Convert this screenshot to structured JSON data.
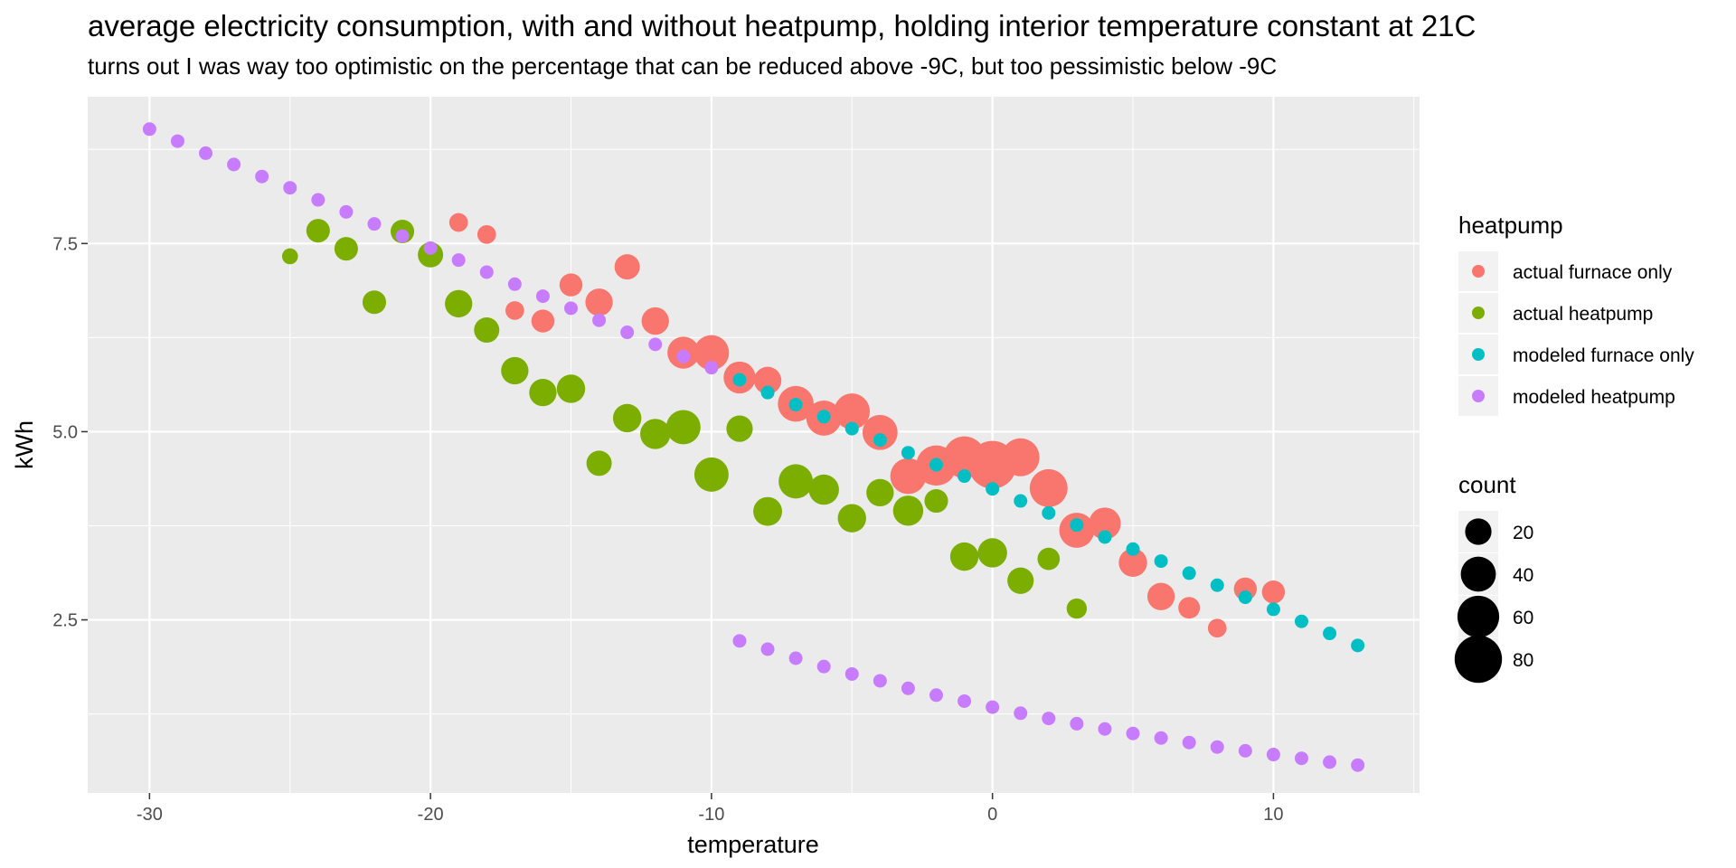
{
  "chart_data": {
    "type": "scatter",
    "title": "average electricity consumption, with and without heatpump, holding interior temperature constant at 21C",
    "subtitle": "turns out I was way too optimistic on the percentage that can be reduced above -9C, but too pessimistic below -9C",
    "xlabel": "temperature",
    "ylabel": "kWh",
    "xlim": [
      -32.2,
      15.2
    ],
    "ylim": [
      0.2,
      9.45
    ],
    "xticks": [
      -30,
      -20,
      -10,
      0,
      10
    ],
    "xtick_labels": [
      "-30",
      "-20",
      "-10",
      "0",
      "10"
    ],
    "yticks": [
      2.5,
      5.0,
      7.5
    ],
    "ytick_labels": [
      "2.5",
      "5.0",
      "7.5"
    ],
    "grid": true,
    "legend_position": "right",
    "size_legend": {
      "title": "count",
      "entries": [
        {
          "label": "20",
          "value": 20
        },
        {
          "label": "40",
          "value": 40
        },
        {
          "label": "60",
          "value": 60
        },
        {
          "label": "80",
          "value": 80
        }
      ]
    },
    "color_legend_title": "heatpump",
    "series": [
      {
        "name": "actual furnace only",
        "color": "#F8766D",
        "points": [
          {
            "x": -19,
            "y": 7.78,
            "count": 8
          },
          {
            "x": -18,
            "y": 7.62,
            "count": 8
          },
          {
            "x": -17,
            "y": 6.61,
            "count": 8
          },
          {
            "x": -16,
            "y": 6.47,
            "count": 14
          },
          {
            "x": -15,
            "y": 6.95,
            "count": 14
          },
          {
            "x": -14,
            "y": 6.72,
            "count": 22
          },
          {
            "x": -13,
            "y": 7.19,
            "count": 18
          },
          {
            "x": -12,
            "y": 6.47,
            "count": 22
          },
          {
            "x": -11,
            "y": 6.05,
            "count": 32
          },
          {
            "x": -10,
            "y": 6.05,
            "count": 40
          },
          {
            "x": -9,
            "y": 5.72,
            "count": 32
          },
          {
            "x": -8,
            "y": 5.68,
            "count": 22
          },
          {
            "x": -7,
            "y": 5.37,
            "count": 42
          },
          {
            "x": -6,
            "y": 5.18,
            "count": 40
          },
          {
            "x": -5,
            "y": 5.27,
            "count": 42
          },
          {
            "x": -4,
            "y": 4.99,
            "count": 40
          },
          {
            "x": -3,
            "y": 4.41,
            "count": 42
          },
          {
            "x": -2,
            "y": 4.55,
            "count": 55
          },
          {
            "x": -1,
            "y": 4.66,
            "count": 60
          },
          {
            "x": 0,
            "y": 4.56,
            "count": 82
          },
          {
            "x": 1,
            "y": 4.66,
            "count": 48
          },
          {
            "x": 2,
            "y": 4.25,
            "count": 48
          },
          {
            "x": 3,
            "y": 3.69,
            "count": 40
          },
          {
            "x": 4,
            "y": 3.78,
            "count": 32
          },
          {
            "x": 5,
            "y": 3.26,
            "count": 24
          },
          {
            "x": 6,
            "y": 2.81,
            "count": 22
          },
          {
            "x": 7,
            "y": 2.66,
            "count": 12
          },
          {
            "x": 8,
            "y": 2.39,
            "count": 8
          },
          {
            "x": 9,
            "y": 2.91,
            "count": 14
          },
          {
            "x": 10,
            "y": 2.87,
            "count": 14
          }
        ]
      },
      {
        "name": "actual heatpump",
        "color": "#7CAE00",
        "points": [
          {
            "x": -25,
            "y": 7.33,
            "count": 5
          },
          {
            "x": -24,
            "y": 7.67,
            "count": 15
          },
          {
            "x": -23,
            "y": 7.43,
            "count": 15
          },
          {
            "x": -22,
            "y": 6.72,
            "count": 15
          },
          {
            "x": -21,
            "y": 7.66,
            "count": 15
          },
          {
            "x": -20,
            "y": 7.35,
            "count": 18
          },
          {
            "x": -19,
            "y": 6.7,
            "count": 22
          },
          {
            "x": -18,
            "y": 6.35,
            "count": 18
          },
          {
            "x": -17,
            "y": 5.81,
            "count": 22
          },
          {
            "x": -16,
            "y": 5.52,
            "count": 22
          },
          {
            "x": -15,
            "y": 5.57,
            "count": 24
          },
          {
            "x": -14,
            "y": 4.58,
            "count": 18
          },
          {
            "x": -13,
            "y": 5.18,
            "count": 24
          },
          {
            "x": -12,
            "y": 4.97,
            "count": 28
          },
          {
            "x": -11,
            "y": 5.06,
            "count": 38
          },
          {
            "x": -10,
            "y": 4.43,
            "count": 38
          },
          {
            "x": -9,
            "y": 5.04,
            "count": 20
          },
          {
            "x": -8,
            "y": 3.94,
            "count": 25
          },
          {
            "x": -7,
            "y": 4.34,
            "count": 38
          },
          {
            "x": -6,
            "y": 4.23,
            "count": 28
          },
          {
            "x": -5,
            "y": 3.85,
            "count": 24
          },
          {
            "x": -4,
            "y": 4.19,
            "count": 22
          },
          {
            "x": -3,
            "y": 3.95,
            "count": 28
          },
          {
            "x": -2,
            "y": 4.08,
            "count": 15
          },
          {
            "x": -1,
            "y": 3.34,
            "count": 24
          },
          {
            "x": 0,
            "y": 3.39,
            "count": 26
          },
          {
            "x": 1,
            "y": 3.02,
            "count": 20
          },
          {
            "x": 2,
            "y": 3.31,
            "count": 13
          },
          {
            "x": 3,
            "y": 2.65,
            "count": 10
          }
        ]
      },
      {
        "name": "modeled furnace only",
        "color": "#00BFC4",
        "points": [
          {
            "x": -9,
            "y": 5.69
          },
          {
            "x": -8,
            "y": 5.52
          },
          {
            "x": -7,
            "y": 5.36
          },
          {
            "x": -6,
            "y": 5.2
          },
          {
            "x": -5,
            "y": 5.04
          },
          {
            "x": -4,
            "y": 4.89
          },
          {
            "x": -3,
            "y": 4.72
          },
          {
            "x": -2,
            "y": 4.56
          },
          {
            "x": -1,
            "y": 4.41
          },
          {
            "x": 0,
            "y": 4.24
          },
          {
            "x": 1,
            "y": 4.08
          },
          {
            "x": 2,
            "y": 3.92
          },
          {
            "x": 3,
            "y": 3.76
          },
          {
            "x": 4,
            "y": 3.6
          },
          {
            "x": 5,
            "y": 3.44
          },
          {
            "x": 6,
            "y": 3.28
          },
          {
            "x": 7,
            "y": 3.12
          },
          {
            "x": 8,
            "y": 2.96
          },
          {
            "x": 9,
            "y": 2.8
          },
          {
            "x": 10,
            "y": 2.64
          },
          {
            "x": 11,
            "y": 2.48
          },
          {
            "x": 12,
            "y": 2.32
          },
          {
            "x": 13,
            "y": 2.16
          }
        ]
      },
      {
        "name": "modeled heatpump",
        "color": "#C77CFF",
        "points": [
          {
            "x": -30,
            "y": 9.02
          },
          {
            "x": -29,
            "y": 8.86
          },
          {
            "x": -28,
            "y": 8.7
          },
          {
            "x": -27,
            "y": 8.55
          },
          {
            "x": -26,
            "y": 8.39
          },
          {
            "x": -25,
            "y": 8.24
          },
          {
            "x": -24,
            "y": 8.08
          },
          {
            "x": -23,
            "y": 7.92
          },
          {
            "x": -22,
            "y": 7.76
          },
          {
            "x": -21,
            "y": 7.6
          },
          {
            "x": -20,
            "y": 7.44
          },
          {
            "x": -19,
            "y": 7.28
          },
          {
            "x": -18,
            "y": 7.12
          },
          {
            "x": -17,
            "y": 6.96
          },
          {
            "x": -16,
            "y": 6.8
          },
          {
            "x": -15,
            "y": 6.64
          },
          {
            "x": -14,
            "y": 6.48
          },
          {
            "x": -13,
            "y": 6.32
          },
          {
            "x": -12,
            "y": 6.16
          },
          {
            "x": -11,
            "y": 6.0
          },
          {
            "x": -10,
            "y": 5.85
          },
          {
            "x": -9,
            "y": 2.22
          },
          {
            "x": -8,
            "y": 2.11
          },
          {
            "x": -7,
            "y": 1.99
          },
          {
            "x": -6,
            "y": 1.88
          },
          {
            "x": -5,
            "y": 1.78
          },
          {
            "x": -4,
            "y": 1.69
          },
          {
            "x": -3,
            "y": 1.59
          },
          {
            "x": -2,
            "y": 1.5
          },
          {
            "x": -1,
            "y": 1.42
          },
          {
            "x": 0,
            "y": 1.34
          },
          {
            "x": 1,
            "y": 1.26
          },
          {
            "x": 2,
            "y": 1.19
          },
          {
            "x": 3,
            "y": 1.12
          },
          {
            "x": 4,
            "y": 1.05
          },
          {
            "x": 5,
            "y": 0.99
          },
          {
            "x": 6,
            "y": 0.93
          },
          {
            "x": 7,
            "y": 0.87
          },
          {
            "x": 8,
            "y": 0.81
          },
          {
            "x": 9,
            "y": 0.76
          },
          {
            "x": 10,
            "y": 0.71
          },
          {
            "x": 11,
            "y": 0.66
          },
          {
            "x": 12,
            "y": 0.61
          },
          {
            "x": 13,
            "y": 0.57
          }
        ]
      }
    ]
  }
}
